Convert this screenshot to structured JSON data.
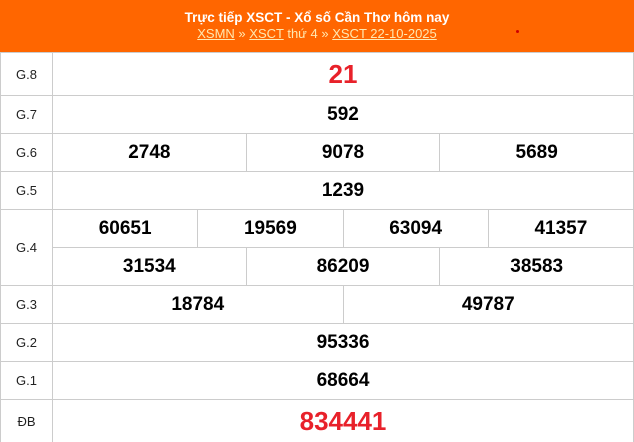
{
  "header": {
    "title": "Trực tiếp XSCT - Xổ số Cần Thơ hôm nay",
    "links": [
      "XSMN",
      "XSCT",
      "XSCT 22-10-2025"
    ],
    "sep": "»",
    "day": "thứ 4",
    "accent": "#ff6600"
  },
  "prizes": [
    {
      "label": "G.8",
      "values": [
        "21"
      ]
    },
    {
      "label": "G.7",
      "values": [
        "592"
      ]
    },
    {
      "label": "G.6",
      "values": [
        "2748",
        "9078",
        "5689"
      ]
    },
    {
      "label": "G.5",
      "values": [
        "1239"
      ]
    },
    {
      "label": "G.4",
      "values": [
        "60651",
        "19569",
        "63094",
        "41357",
        "31534",
        "86209",
        "38583"
      ]
    },
    {
      "label": "G.3",
      "values": [
        "18784",
        "49787"
      ]
    },
    {
      "label": "G.2",
      "values": [
        "95336"
      ]
    },
    {
      "label": "G.1",
      "values": [
        "68664"
      ]
    },
    {
      "label": "ĐB",
      "values": [
        "834441"
      ]
    }
  ],
  "highlight_color": "#e8212a"
}
